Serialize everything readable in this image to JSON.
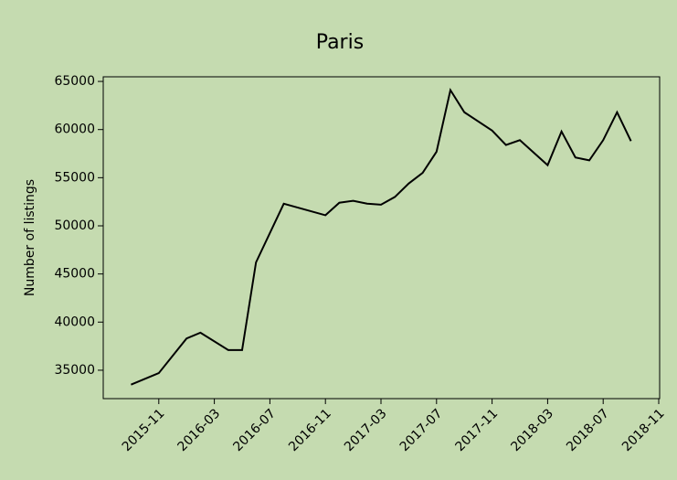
{
  "chart_data": {
    "type": "line",
    "title": "Paris",
    "y_label": "Number of listings",
    "x": [
      "2015-09",
      "2015-11",
      "2016-01",
      "2016-02",
      "2016-04",
      "2016-05",
      "2016-06",
      "2016-08",
      "2016-11",
      "2016-12",
      "2017-01",
      "2017-02",
      "2017-03",
      "2017-04",
      "2017-05",
      "2017-06",
      "2017-07",
      "2017-08",
      "2017-09",
      "2017-11",
      "2017-12",
      "2018-01",
      "2018-03",
      "2018-04",
      "2018-05",
      "2018-06",
      "2018-07",
      "2018-08",
      "2018-09"
    ],
    "series": [
      {
        "name": "Paris",
        "color": "#000000",
        "values": [
          33500,
          34700,
          38300,
          38900,
          37100,
          37100,
          46200,
          52300,
          51100,
          52400,
          52600,
          52300,
          52200,
          53000,
          54400,
          55500,
          57700,
          64100,
          61800,
          59900,
          58400,
          58900,
          56300,
          59800,
          57100,
          56800,
          58900,
          61800,
          58800
        ]
      }
    ],
    "xlim": [
      "2015-07",
      "2018-11"
    ],
    "xticks": [
      "2015-11",
      "2016-03",
      "2016-07",
      "2016-11",
      "2017-03",
      "2017-07",
      "2017-11",
      "2018-03",
      "2018-07",
      "2018-11"
    ],
    "ylim": [
      32050,
      65480
    ],
    "yticks": [
      35000,
      40000,
      45000,
      50000,
      55000,
      60000,
      65000
    ]
  }
}
